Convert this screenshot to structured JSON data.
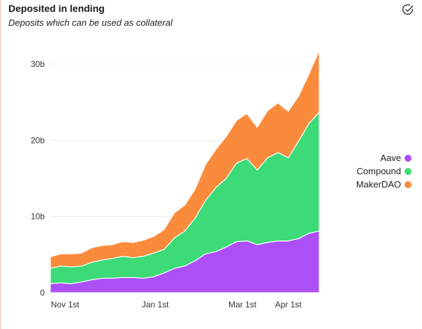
{
  "header": {
    "title": "Deposited in lending",
    "subtitle": "Deposits which can be used as collateral",
    "action_icon": "check-circle-icon"
  },
  "chart_data": {
    "type": "area",
    "stacked": true,
    "title": "Deposited in lending",
    "subtitle": "Deposits which can be used as collateral",
    "xlabel": "",
    "ylabel": "",
    "ylim": [
      0,
      32
    ],
    "xlim": [
      "2020-10-22",
      "2021-04-22"
    ],
    "y_unit": "b",
    "y_ticks": [
      {
        "value": 0,
        "label": "0"
      },
      {
        "value": 10,
        "label": "10b"
      },
      {
        "value": 20,
        "label": "20b"
      },
      {
        "value": 30,
        "label": "30b"
      }
    ],
    "x_ticks": [
      {
        "date": "2020-11-01",
        "label": "Nov 1st"
      },
      {
        "date": "2021-01-01",
        "label": "Jan 1st"
      },
      {
        "date": "2021-03-01",
        "label": "Mar 1st"
      },
      {
        "date": "2021-04-01",
        "label": "Apr 1st"
      }
    ],
    "grid": true,
    "legend_position": "right",
    "x": [
      "2020-10-22",
      "2020-10-29",
      "2020-11-05",
      "2020-11-12",
      "2020-11-19",
      "2020-11-26",
      "2020-12-03",
      "2020-12-10",
      "2020-12-17",
      "2020-12-24",
      "2020-12-31",
      "2021-01-07",
      "2021-01-14",
      "2021-01-21",
      "2021-01-28",
      "2021-02-04",
      "2021-02-11",
      "2021-02-18",
      "2021-02-25",
      "2021-03-04",
      "2021-03-11",
      "2021-03-18",
      "2021-03-25",
      "2021-04-01",
      "2021-04-08",
      "2021-04-15",
      "2021-04-22"
    ],
    "series": [
      {
        "name": "Aave",
        "color": "#ad4ff7",
        "values": [
          1.2,
          1.3,
          1.2,
          1.4,
          1.7,
          1.9,
          1.9,
          2.0,
          2.0,
          1.9,
          2.1,
          2.6,
          3.2,
          3.5,
          4.2,
          5.1,
          5.4,
          6.0,
          6.7,
          6.8,
          6.3,
          6.6,
          6.8,
          6.8,
          7.1,
          7.8,
          8.1
        ]
      },
      {
        "name": "Compound",
        "color": "#3cdb78",
        "values": [
          2.0,
          2.2,
          2.2,
          2.1,
          2.3,
          2.4,
          2.6,
          2.8,
          2.6,
          2.9,
          3.1,
          3.1,
          4.0,
          4.6,
          5.6,
          7.0,
          8.4,
          9.0,
          10.3,
          10.8,
          9.8,
          11.1,
          11.6,
          10.9,
          12.8,
          14.4,
          15.6
        ]
      },
      {
        "name": "MakerDAO",
        "color": "#fb8b3c",
        "values": [
          1.5,
          1.6,
          1.7,
          1.7,
          1.9,
          1.9,
          1.8,
          1.9,
          2.0,
          2.1,
          2.2,
          2.6,
          3.3,
          3.4,
          3.8,
          4.7,
          5.0,
          5.5,
          5.6,
          5.9,
          5.6,
          6.2,
          6.5,
          6.1,
          5.9,
          6.5,
          8.1
        ]
      }
    ]
  }
}
